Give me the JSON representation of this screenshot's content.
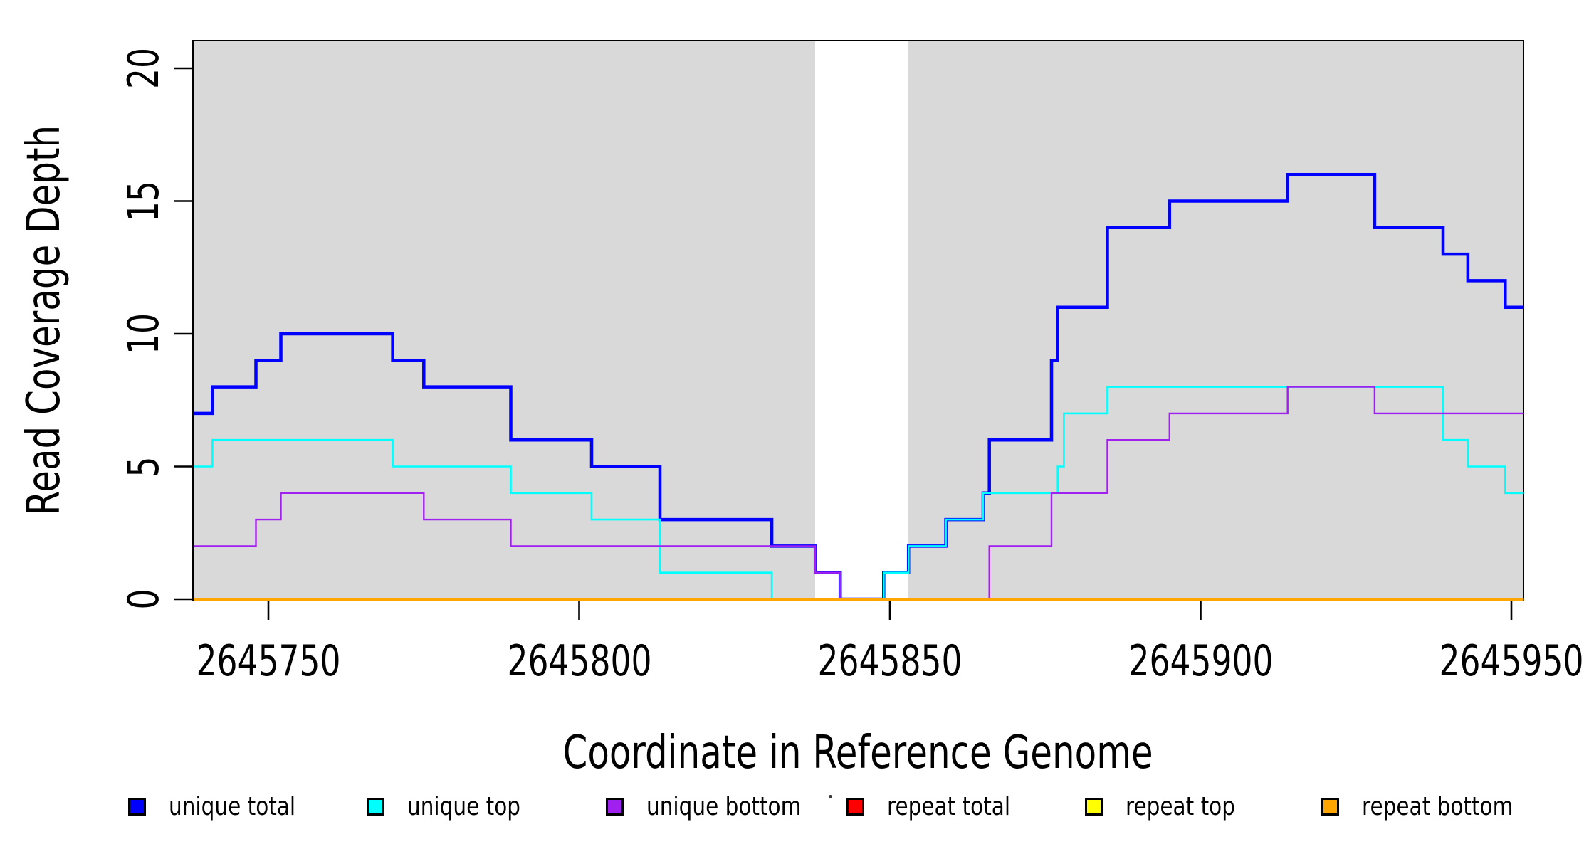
{
  "axes": {
    "x_title": "Coordinate in Reference Genome",
    "y_title": "Read Coverage Depth"
  },
  "chart_data": {
    "type": "line",
    "subtype": "step",
    "title": "",
    "xlabel": "Coordinate in Reference Genome",
    "ylabel": "Read Coverage Depth",
    "xlim": [
      2645738,
      2645952
    ],
    "ylim": [
      0,
      21
    ],
    "grid": false,
    "legend_position": "bottom",
    "x_ticks": [
      2645750,
      2645800,
      2645850,
      2645900,
      2645950
    ],
    "x_tick_labels": [
      "2645750",
      "2645800",
      "2645850",
      "2645900",
      "2645950"
    ],
    "y_ticks": [
      0,
      5,
      10,
      15,
      20
    ],
    "y_tick_labels": [
      "0",
      "5",
      "10",
      "15",
      "20"
    ],
    "plot_background_color": "#ffffff",
    "shaded_regions": [
      {
        "x0": 2645738,
        "x1": 2645838,
        "color": "#d9d9d9"
      },
      {
        "x0": 2645853,
        "x1": 2645952,
        "color": "#d9d9d9"
      }
    ],
    "gap_region": {
      "x0": 2645838,
      "x1": 2645853,
      "color": "#ffffff"
    },
    "series": [
      {
        "name": "unique total",
        "color": "#0000ff",
        "line_width": 4.5,
        "steps": [
          [
            2645738,
            7
          ],
          [
            2645741,
            8
          ],
          [
            2645748,
            9
          ],
          [
            2645752,
            10
          ],
          [
            2645770,
            9
          ],
          [
            2645775,
            8
          ],
          [
            2645789,
            6
          ],
          [
            2645802,
            5
          ],
          [
            2645813,
            3
          ],
          [
            2645831,
            2
          ],
          [
            2645838,
            1
          ],
          [
            2645842,
            0
          ],
          [
            2645849,
            1
          ],
          [
            2645853,
            2
          ],
          [
            2645859,
            3
          ],
          [
            2645865,
            4
          ],
          [
            2645866,
            6
          ],
          [
            2645876,
            9
          ],
          [
            2645877,
            11
          ],
          [
            2645885,
            14
          ],
          [
            2645895,
            15
          ],
          [
            2645914,
            16
          ],
          [
            2645928,
            14
          ],
          [
            2645939,
            13
          ],
          [
            2645943,
            12
          ],
          [
            2645949,
            11
          ]
        ],
        "end_x": 2645952
      },
      {
        "name": "unique top",
        "color": "#00ffff",
        "line_width": 2.6,
        "steps": [
          [
            2645738,
            5
          ],
          [
            2645741,
            6
          ],
          [
            2645770,
            5
          ],
          [
            2645789,
            4
          ],
          [
            2645802,
            3
          ],
          [
            2645813,
            1
          ],
          [
            2645831,
            0
          ],
          [
            2645849,
            1
          ],
          [
            2645853,
            2
          ],
          [
            2645859,
            3
          ],
          [
            2645865,
            4
          ],
          [
            2645877,
            5
          ],
          [
            2645878,
            7
          ],
          [
            2645885,
            8
          ],
          [
            2645939,
            6
          ],
          [
            2645943,
            5
          ],
          [
            2645949,
            4
          ]
        ],
        "end_x": 2645952
      },
      {
        "name": "unique bottom",
        "color": "#a020f0",
        "line_width": 2.4,
        "steps": [
          [
            2645738,
            2
          ],
          [
            2645748,
            3
          ],
          [
            2645752,
            4
          ],
          [
            2645775,
            3
          ],
          [
            2645789,
            2
          ],
          [
            2645838,
            1
          ],
          [
            2645842,
            0
          ],
          [
            2645866,
            2
          ],
          [
            2645876,
            4
          ],
          [
            2645885,
            6
          ],
          [
            2645895,
            7
          ],
          [
            2645914,
            8
          ],
          [
            2645928,
            7
          ]
        ],
        "end_x": 2645952
      },
      {
        "name": "repeat total",
        "color": "#ff0000",
        "line_width": 3.5,
        "steps": [
          [
            2645738,
            0
          ]
        ],
        "end_x": 2645952
      },
      {
        "name": "repeat top",
        "color": "#ffff00",
        "line_width": 3.5,
        "steps": [
          [
            2645738,
            0
          ]
        ],
        "end_x": 2645952
      },
      {
        "name": "repeat bottom",
        "color": "#ffa500",
        "line_width": 4,
        "steps": [
          [
            2645738,
            0
          ]
        ],
        "end_x": 2645952
      }
    ]
  },
  "legend": {
    "items": [
      {
        "label": "unique total",
        "color": "#0000ff"
      },
      {
        "label": "unique top",
        "color": "#00ffff"
      },
      {
        "label": "unique bottom",
        "color": "#a020f0"
      },
      {
        "label": "repeat total",
        "color": "#ff0000"
      },
      {
        "label": "repeat top",
        "color": "#ffff00"
      },
      {
        "label": "repeat bottom",
        "color": "#ffa500"
      }
    ]
  }
}
